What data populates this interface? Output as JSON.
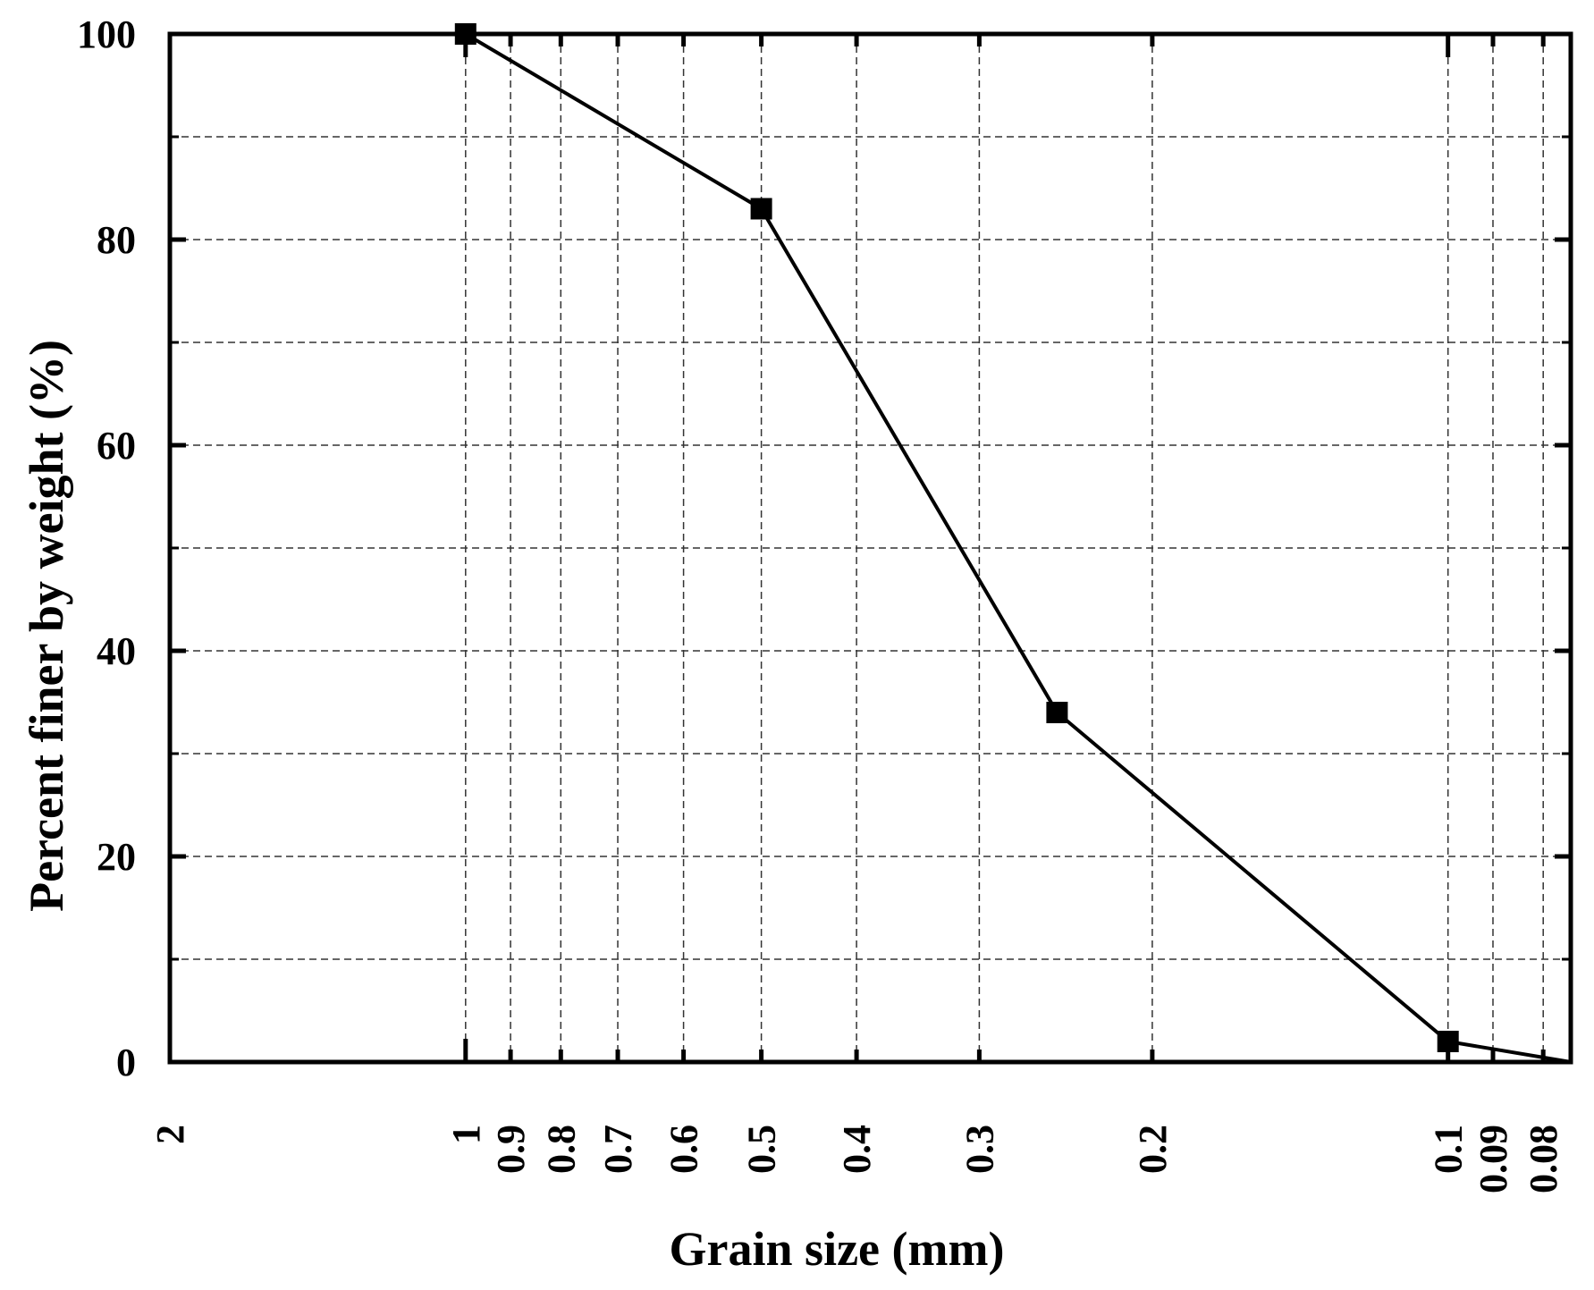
{
  "chart_data": {
    "type": "line",
    "xlabel": "Grain size (mm)",
    "ylabel": "Percent finer by weight (%)",
    "x_scale": "log",
    "x_reversed": true,
    "xlim": [
      2,
      0.075
    ],
    "ylim": [
      0,
      100
    ],
    "x_ticks": [
      {
        "value": 2,
        "label": "2"
      },
      {
        "value": 1,
        "label": "1"
      },
      {
        "value": 0.9,
        "label": "0.9"
      },
      {
        "value": 0.8,
        "label": "0.8"
      },
      {
        "value": 0.7,
        "label": "0.7"
      },
      {
        "value": 0.6,
        "label": "0.6"
      },
      {
        "value": 0.5,
        "label": "0.5"
      },
      {
        "value": 0.4,
        "label": "0.4"
      },
      {
        "value": 0.3,
        "label": "0.3"
      },
      {
        "value": 0.2,
        "label": "0.2"
      },
      {
        "value": 0.1,
        "label": "0.1"
      },
      {
        "value": 0.09,
        "label": "0.09"
      },
      {
        "value": 0.08,
        "label": "0.08"
      }
    ],
    "y_ticks": [
      0,
      20,
      40,
      60,
      80,
      100
    ],
    "y_minor_ticks": [
      10,
      30,
      50,
      70,
      90
    ],
    "grid": true,
    "series": [
      {
        "marker": "square",
        "color": "#000000",
        "points": [
          {
            "x": 2,
            "y": 100,
            "marker": false
          },
          {
            "x": 1,
            "y": 100,
            "marker": true
          },
          {
            "x": 0.5,
            "y": 83,
            "marker": true
          },
          {
            "x": 0.25,
            "y": 34,
            "marker": true
          },
          {
            "x": 0.1,
            "y": 2,
            "marker": true
          },
          {
            "x": 0.075,
            "y": 0,
            "marker": false
          }
        ]
      }
    ]
  }
}
